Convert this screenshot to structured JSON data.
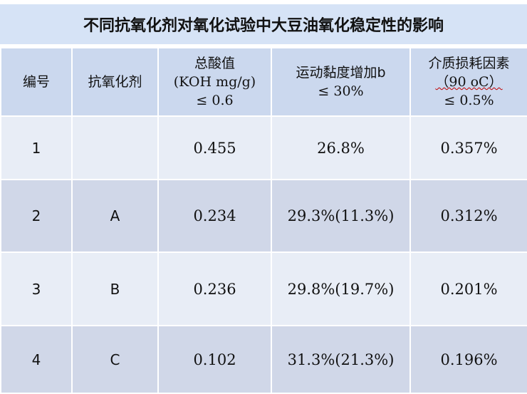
{
  "title": "不同抗氧化剂对氧化试验中大豆油氧化稳定性的影响",
  "headers": [
    {
      "lines": [
        "编号"
      ]
    },
    {
      "lines": [
        "抗氧化剂"
      ]
    },
    {
      "lines": [
        "总酸值",
        "(KOH mg/g)",
        "≤ 0.6"
      ]
    },
    {
      "lines": [
        "运动黏度增加b",
        "≤ 30%"
      ]
    },
    {
      "lines": [
        "介质损耗因素",
        "（90 oC）",
        "≤ 0.5%"
      ]
    }
  ],
  "rows": [
    {
      "no": "1",
      "antioxidant": "",
      "acid_value": "0.455",
      "viscosity_increase": "26.8%",
      "dielectric_loss": "0.357%"
    },
    {
      "no": "2",
      "antioxidant": "A",
      "acid_value": "0.234",
      "viscosity_increase": "29.3%(11.3%)",
      "dielectric_loss": "0.312%"
    },
    {
      "no": "3",
      "antioxidant": "B",
      "acid_value": "0.236",
      "viscosity_increase": "29.8%(19.7%)",
      "dielectric_loss": "0.201%"
    },
    {
      "no": "4",
      "antioxidant": "C",
      "acid_value": "0.102",
      "viscosity_increase": "31.3%(21.3%)",
      "dielectric_loss": "0.196%"
    }
  ]
}
